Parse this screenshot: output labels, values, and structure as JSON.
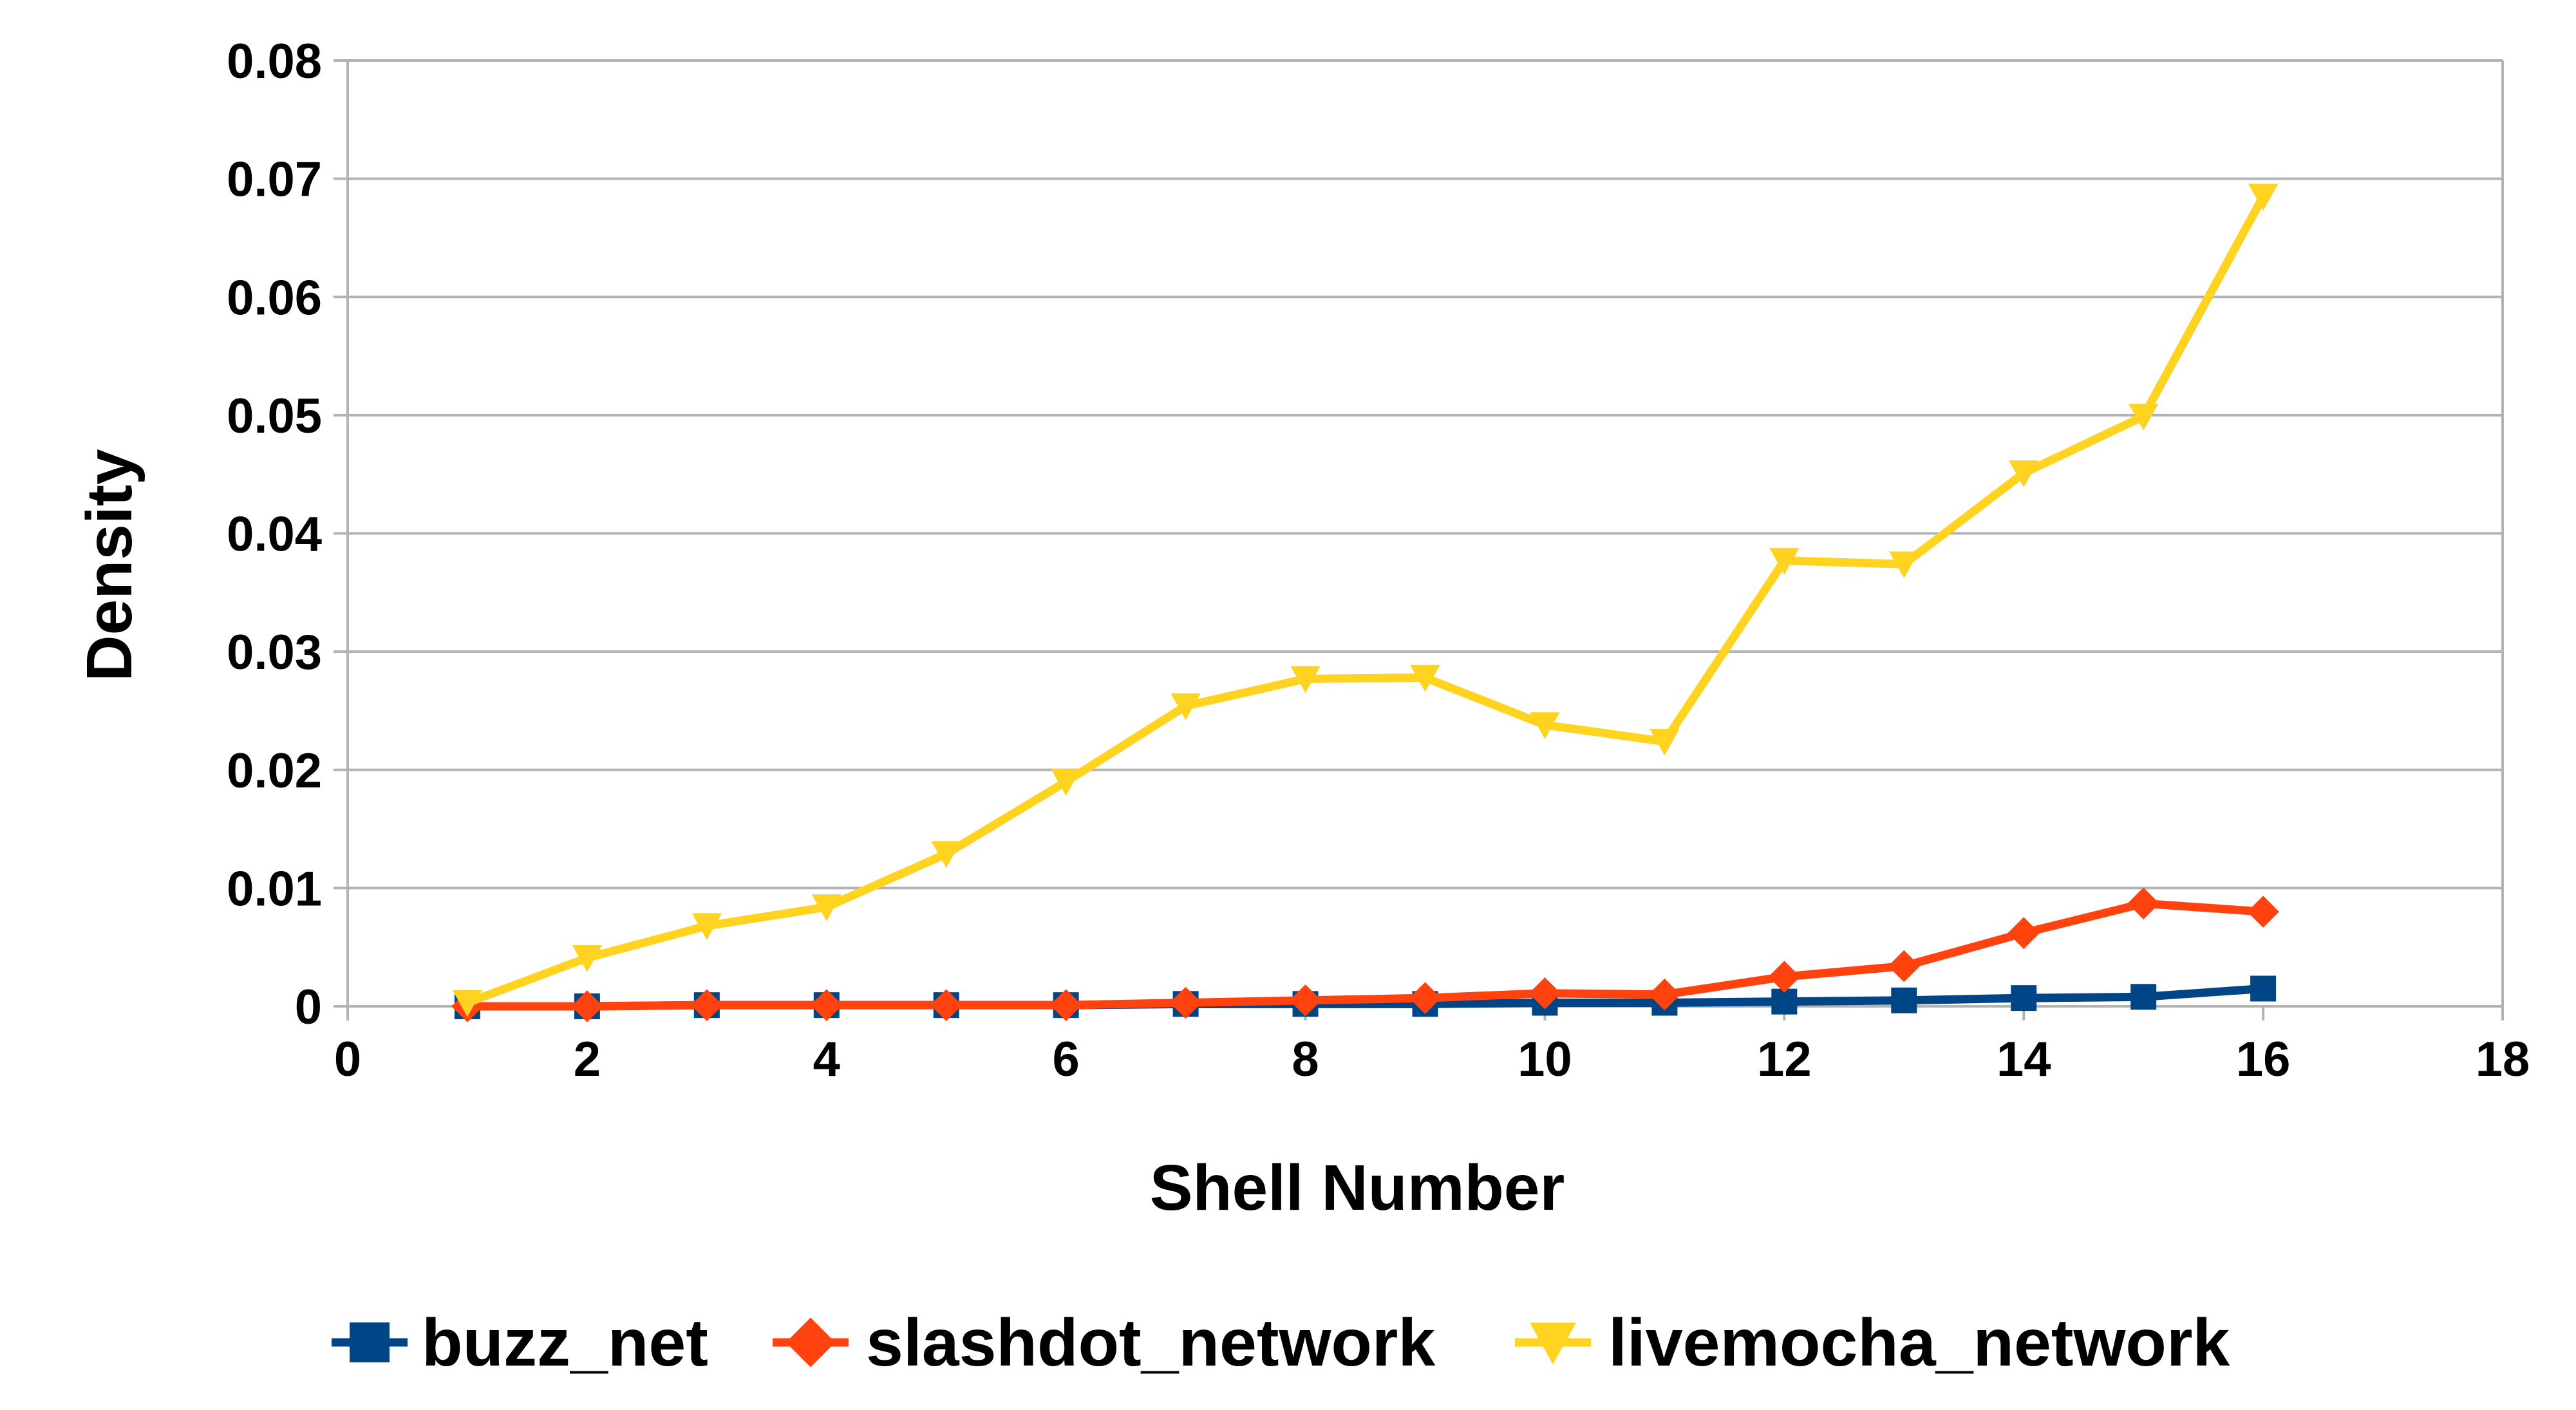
{
  "chart_data": {
    "type": "line",
    "title": "",
    "xlabel": "Shell Number",
    "ylabel": "Density",
    "xlim": [
      0,
      18
    ],
    "ylim": [
      0,
      0.08
    ],
    "xticks": [
      "0",
      "2",
      "4",
      "6",
      "8",
      "10",
      "12",
      "14",
      "16",
      "18"
    ],
    "xtick_values": [
      0,
      2,
      4,
      6,
      8,
      10,
      12,
      14,
      16,
      18
    ],
    "yticks": [
      "0",
      "0.01",
      "0.02",
      "0.03",
      "0.04",
      "0.05",
      "0.06",
      "0.07",
      "0.08"
    ],
    "ytick_values": [
      0,
      0.01,
      0.02,
      0.03,
      0.04,
      0.05,
      0.06,
      0.07,
      0.08
    ],
    "grid": "horizontal",
    "legend_position": "bottom",
    "x": [
      1,
      2,
      3,
      4,
      5,
      6,
      7,
      8,
      9,
      10,
      11,
      12,
      13,
      14,
      15,
      16
    ],
    "series": [
      {
        "name": "buzz_net",
        "color": "#004586",
        "marker": "square",
        "values": [
          0.0,
          0.0,
          0.0001,
          0.0001,
          0.0001,
          0.0001,
          0.0002,
          0.0002,
          0.0002,
          0.0003,
          0.0003,
          0.0004,
          0.0005,
          0.0007,
          0.0008,
          0.0015
        ]
      },
      {
        "name": "slashdot_network",
        "color": "#ff420e",
        "marker": "diamond",
        "values": [
          0.0,
          0.0,
          0.0001,
          0.0001,
          0.0001,
          0.0001,
          0.0003,
          0.0005,
          0.0007,
          0.0011,
          0.001,
          0.0025,
          0.0034,
          0.0062,
          0.0087,
          0.008
        ]
      },
      {
        "name": "livemocha_network",
        "color": "#ffd320",
        "marker": "triangle-down",
        "values": [
          0.0003,
          0.0041,
          0.0068,
          0.0084,
          0.0129,
          0.019,
          0.0254,
          0.0277,
          0.0278,
          0.0238,
          0.0224,
          0.0377,
          0.0374,
          0.0451,
          0.0499,
          0.0685
        ]
      }
    ]
  }
}
